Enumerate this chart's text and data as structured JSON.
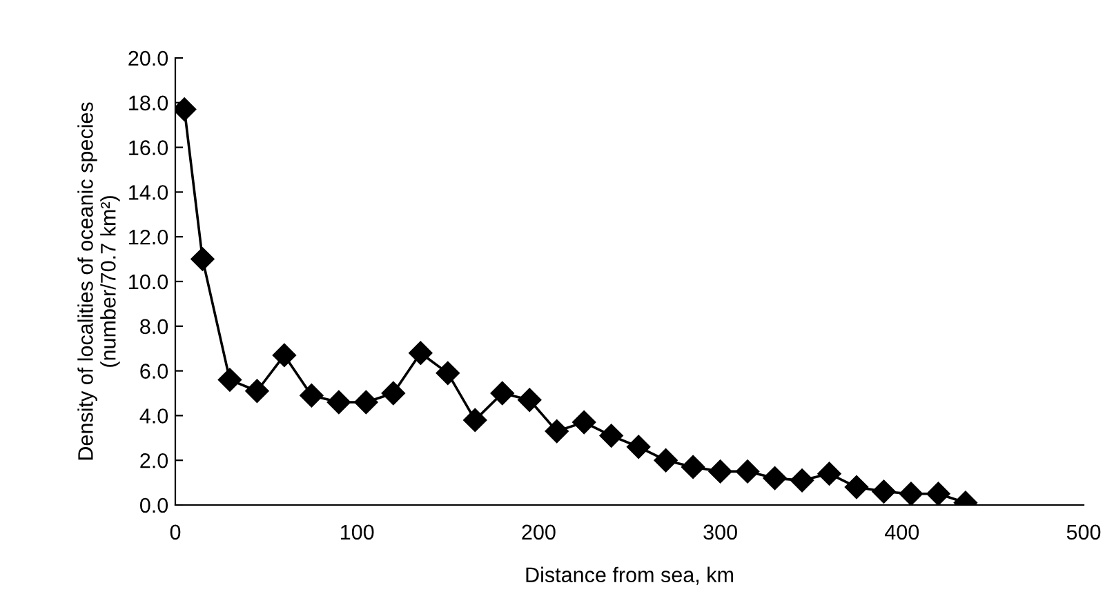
{
  "chart_data": {
    "type": "line",
    "xlabel": "Distance from sea, km",
    "ylabel": "Density of localities of oceanic species\n(number/70.7 km²)",
    "x": [
      5,
      15,
      30,
      45,
      60,
      75,
      90,
      105,
      120,
      135,
      150,
      165,
      180,
      195,
      210,
      225,
      240,
      255,
      270,
      285,
      300,
      315,
      330,
      345,
      360,
      375,
      390,
      405,
      420,
      435
    ],
    "series": [
      {
        "color": "#000000",
        "values": [
          17.7,
          11.0,
          5.6,
          5.1,
          6.7,
          4.9,
          4.6,
          4.6,
          5.0,
          6.8,
          5.9,
          3.8,
          5.0,
          4.7,
          3.3,
          3.7,
          3.1,
          2.6,
          2.0,
          1.7,
          1.5,
          1.5,
          1.2,
          1.1,
          1.4,
          0.8,
          0.6,
          0.5,
          0.5,
          0.1
        ]
      }
    ],
    "xlim": [
      0,
      500
    ],
    "xticks": [
      0,
      100,
      200,
      300,
      400,
      500
    ],
    "ylim": [
      0,
      20
    ],
    "yticks": [
      {
        "value": 0,
        "label": "0.0"
      },
      {
        "value": 2,
        "label": "2.0"
      },
      {
        "value": 4,
        "label": "4.0"
      },
      {
        "value": 6,
        "label": "6.0"
      },
      {
        "value": 8,
        "label": "8.0"
      },
      {
        "value": 10,
        "label": "10.0"
      },
      {
        "value": 12,
        "label": "12.0"
      },
      {
        "value": 14,
        "label": "14.0"
      },
      {
        "value": 16,
        "label": "16.0"
      },
      {
        "value": 18,
        "label": "18.0"
      },
      {
        "value": 20,
        "label": "20.0"
      }
    ],
    "marker": "diamond",
    "line_style": "solid",
    "grid": false,
    "legend": false
  }
}
